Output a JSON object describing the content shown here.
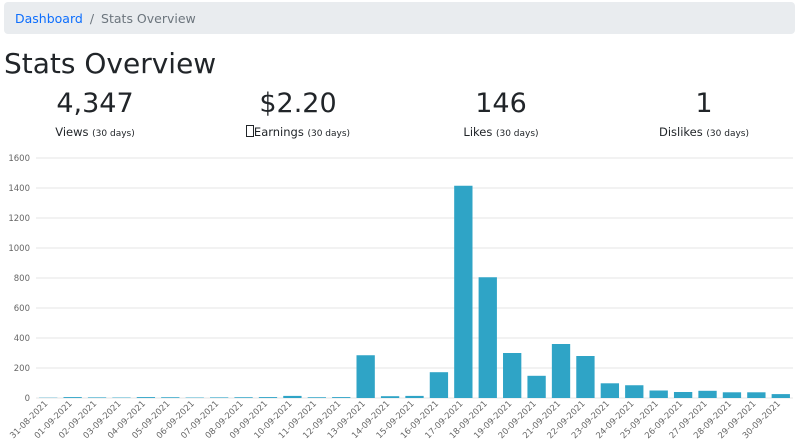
{
  "breadcrumb": {
    "home": "Dashboard",
    "separator": "/",
    "current": "Stats Overview"
  },
  "page": {
    "title": "Stats Overview"
  },
  "stats": [
    {
      "value": "4,347",
      "label": "Views",
      "period": "(30 days)"
    },
    {
      "value": "$2.20",
      "label": "Earnings",
      "period": "(30 days)",
      "icon": "missing-glyph-icon"
    },
    {
      "value": "146",
      "label": "Likes",
      "period": "(30 days)"
    },
    {
      "value": "1",
      "label": "Dislikes",
      "period": "(30 days)"
    }
  ],
  "colors": {
    "bar": "#2fa4c6",
    "link": "#0d6efd",
    "breadcrumb_bg": "#e9ecef"
  },
  "chart_data": {
    "type": "bar",
    "categories": [
      "31-08-2021",
      "01-09-2021",
      "02-09-2021",
      "03-09-2021",
      "04-09-2021",
      "05-09-2021",
      "06-09-2021",
      "07-09-2021",
      "08-09-2021",
      "09-09-2021",
      "10-09-2021",
      "11-09-2021",
      "12-09-2021",
      "13-09-2021",
      "14-09-2021",
      "15-09-2021",
      "16-09-2021",
      "17-09-2021",
      "18-09-2021",
      "19-09-2021",
      "20-09-2021",
      "21-09-2021",
      "22-09-2021",
      "23-09-2021",
      "24-09-2021",
      "25-09-2021",
      "26-09-2021",
      "27-09-2021",
      "28-09-2021",
      "29-09-2021",
      "30-09-2021"
    ],
    "values": [
      2,
      6,
      4,
      3,
      6,
      5,
      3,
      4,
      5,
      6,
      14,
      5,
      6,
      285,
      12,
      14,
      172,
      1415,
      805,
      300,
      148,
      360,
      280,
      98,
      85,
      50,
      40,
      48,
      38,
      38,
      26
    ],
    "yticks": [
      0,
      200,
      400,
      600,
      800,
      1000,
      1200,
      1400,
      1600
    ],
    "ylim": [
      0,
      1600
    ],
    "grid": true,
    "title": "",
    "xlabel": "",
    "ylabel": ""
  }
}
